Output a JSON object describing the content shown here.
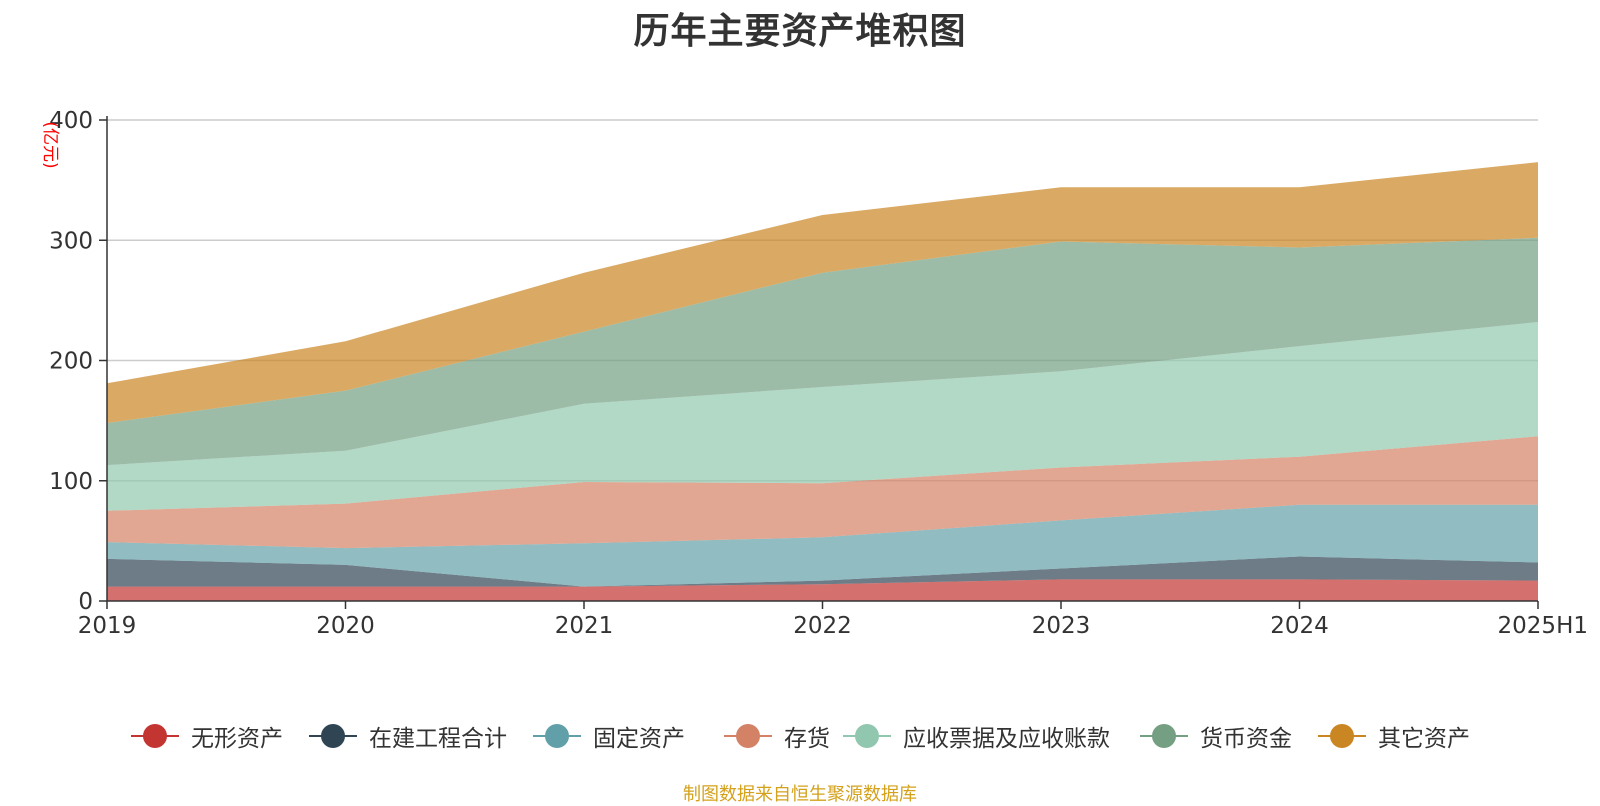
{
  "chart_data": {
    "type": "area",
    "stacked": true,
    "title": "历年主要资产堆积图",
    "ylabel": "(亿元)",
    "xlabel": "",
    "categories": [
      "2019",
      "2020",
      "2021",
      "2022",
      "2023",
      "2024",
      "2025H1"
    ],
    "ylim": [
      0,
      400
    ],
    "yticks": [
      0,
      100,
      200,
      300,
      400
    ],
    "grid": true,
    "legend_position": "bottom",
    "series": [
      {
        "name": "无形资产",
        "color": "#c23531",
        "values": [
          12,
          12,
          12,
          14,
          18,
          18,
          17
        ]
      },
      {
        "name": "在建工程合计",
        "color": "#2f4554",
        "values": [
          23,
          18,
          0,
          3,
          9,
          19,
          15
        ]
      },
      {
        "name": "固定资产",
        "color": "#61a0a8",
        "values": [
          14,
          14,
          36,
          36,
          40,
          43,
          48
        ]
      },
      {
        "name": "存货",
        "color": "#d48265",
        "values": [
          26,
          37,
          51,
          45,
          44,
          40,
          57
        ]
      },
      {
        "name": "应收票据及应收账款",
        "color": "#91c7ae",
        "values": [
          38,
          44,
          65,
          80,
          80,
          92,
          95
        ]
      },
      {
        "name": "货币资金",
        "color": "#749f83",
        "values": [
          35,
          50,
          60,
          95,
          108,
          82,
          70
        ]
      },
      {
        "name": "其它资产",
        "color": "#ca8622",
        "values": [
          33,
          41,
          49,
          48,
          45,
          50,
          63
        ]
      }
    ]
  },
  "source_note": "制图数据来自恒生聚源数据库"
}
